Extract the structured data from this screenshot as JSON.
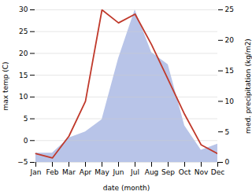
{
  "chart_data": {
    "type": "line",
    "xlabel": "date (month)",
    "ylabel": "max temp (C)",
    "y2label": "med. precipitation (kg/m2)",
    "categories": [
      "Jan",
      "Feb",
      "Mar",
      "Apr",
      "May",
      "Jun",
      "Jul",
      "Aug",
      "Sep",
      "Oct",
      "Nov",
      "Dec"
    ],
    "series": [
      {
        "type": "area",
        "axis": "y2",
        "color": "#b8c4e8",
        "values": [
          1.5,
          1.5,
          4,
          5,
          7,
          17,
          25,
          18,
          16,
          6,
          2,
          3
        ]
      },
      {
        "type": "line",
        "color": "#c0392b",
        "values": [
          -3,
          -4,
          1,
          9,
          30,
          27,
          29,
          22,
          14,
          6,
          -1,
          -3
        ]
      }
    ],
    "ylim": [
      -5,
      30
    ],
    "yticks": [
      -5,
      0,
      5,
      10,
      15,
      20,
      25,
      30
    ],
    "y2lim": [
      0,
      25
    ],
    "y2ticks": [
      0,
      5,
      10,
      15,
      20,
      25
    ],
    "grid": true
  }
}
